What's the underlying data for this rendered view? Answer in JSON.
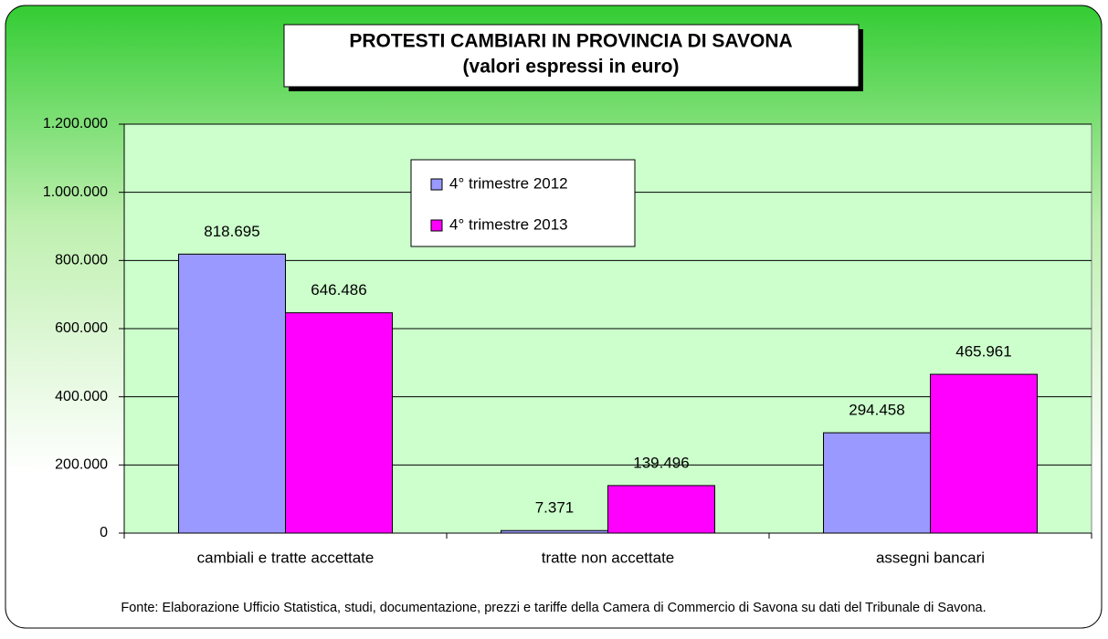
{
  "chart_data": {
    "type": "bar",
    "title": "PROTESTI CAMBIARI IN PROVINCIA DI SAVONA",
    "subtitle": "(valori espressi in euro)",
    "categories": [
      "cambiali e tratte accettate",
      "tratte non accettate",
      "assegni bancari"
    ],
    "series": [
      {
        "name": "4° trimestre 2012",
        "color": "#9999ff",
        "values": [
          818695,
          7371,
          294458
        ],
        "value_labels": [
          "818.695",
          "7.371",
          "294.458"
        ]
      },
      {
        "name": "4° trimestre 2013",
        "color": "#ff00ff",
        "values": [
          646486,
          139496,
          465961
        ],
        "value_labels": [
          "646.486",
          "139.496",
          "465.961"
        ]
      }
    ],
    "ylim": [
      0,
      1200000
    ],
    "yticks": [
      0,
      {
        "value": 200000,
        "label": "200.000"
      },
      {
        "value": 400000,
        "label": "400.000"
      },
      {
        "value": 600000,
        "label": "600.000"
      },
      {
        "value": 800000,
        "label": "800.000"
      },
      {
        "value": 1000000,
        "label": "1.000.000"
      },
      {
        "value": 1200000,
        "label": "1.200.000"
      }
    ],
    "grid": true,
    "legend": "upper center",
    "source": "Fonte: Elaborazione Ufficio Statistica, studi, documentazione, prezzi e tariffe della Camera di Commercio di Savona su dati del Tribunale di Savona."
  }
}
